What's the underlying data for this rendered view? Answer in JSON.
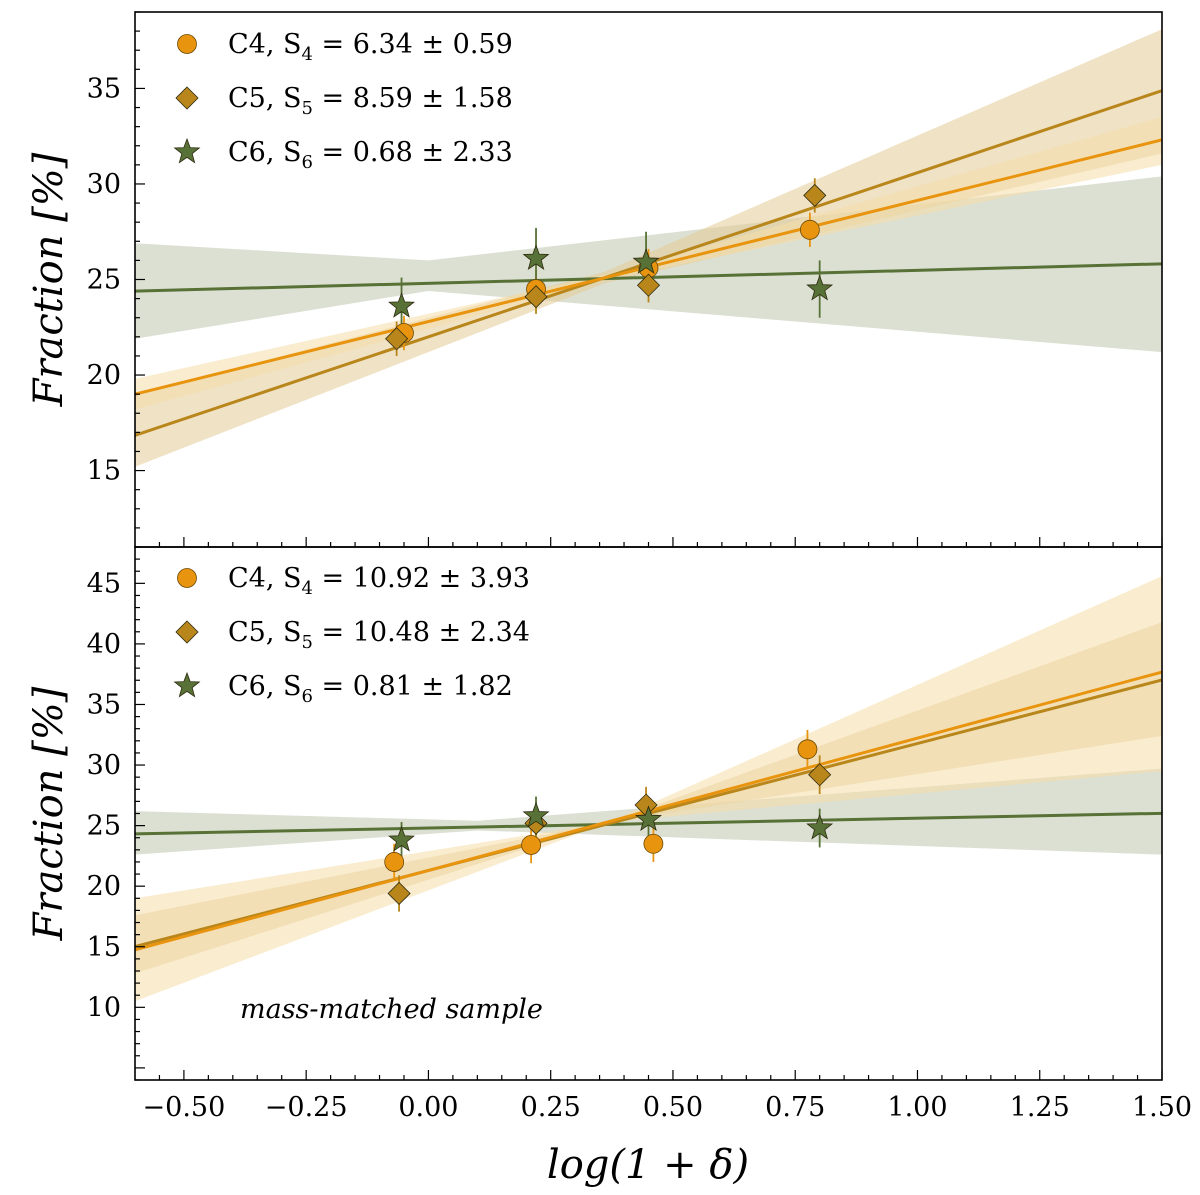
{
  "figure": {
    "x_axis_label": "log(1 + δ)"
  },
  "colors": {
    "C4": "#E8940E",
    "C5": "#B8861A",
    "C6": "#587136",
    "C4_band": "#F6DCA8",
    "C5_band": "#E3CB95",
    "C6_band": "#C5CCB6"
  },
  "chart_data": [
    {
      "type": "scatter",
      "panel": "top",
      "xlabel": "log(1 + δ)",
      "ylabel": "Fraction [%]",
      "xlim": [
        -0.6,
        1.5
      ],
      "ylim": [
        11,
        39
      ],
      "yticks": [
        15,
        20,
        25,
        30,
        35
      ],
      "xticks": [
        -0.5,
        -0.25,
        0.0,
        0.25,
        0.5,
        0.75,
        1.0,
        1.25,
        1.5
      ],
      "xtick_labels": [
        "−0.50",
        "−0.25",
        "0.00",
        "0.25",
        "0.50",
        "0.75",
        "1.00",
        "1.25",
        "1.50"
      ],
      "annotation": "",
      "series": [
        {
          "name": "C4",
          "marker": "circle",
          "legend": {
            "prefix": "C4,",
            "sym": "S",
            "sub": "4",
            "value": "= 6.34 ± 0.59"
          },
          "points": [
            {
              "x": -0.05,
              "y": 22.2,
              "err": 0.9
            },
            {
              "x": 0.22,
              "y": 24.5,
              "err": 1.0
            },
            {
              "x": 0.45,
              "y": 25.6,
              "err": 1.0
            },
            {
              "x": 0.78,
              "y": 27.6,
              "err": 0.9
            }
          ],
          "fit": {
            "slope": 6.34,
            "intercept": 22.8
          },
          "band": {
            "x": [
              -0.6,
              0.36,
              1.5
            ],
            "lo": [
              18.2,
              24.95,
              31.0
            ],
            "hi": [
              19.8,
              25.25,
              33.5
            ]
          }
        },
        {
          "name": "C5",
          "marker": "diamond",
          "legend": {
            "prefix": "C5,",
            "sym": "S",
            "sub": "5",
            "value": "= 8.59 ± 1.58"
          },
          "points": [
            {
              "x": -0.065,
              "y": 21.9,
              "err": 0.9
            },
            {
              "x": 0.22,
              "y": 24.1,
              "err": 0.9
            },
            {
              "x": 0.45,
              "y": 24.7,
              "err": 0.9
            },
            {
              "x": 0.79,
              "y": 29.4,
              "err": 0.9
            }
          ],
          "fit": {
            "slope": 8.59,
            "intercept": 22.0
          },
          "band": {
            "x": [
              -0.6,
              0.36,
              1.5
            ],
            "lo": [
              15.2,
              24.8,
              31.6
            ],
            "hi": [
              19.0,
              25.4,
              38.1
            ]
          }
        },
        {
          "name": "C6",
          "marker": "star",
          "legend": {
            "prefix": "C6,",
            "sym": "S",
            "sub": "6",
            "value": "= 0.68 ± 2.33"
          },
          "points": [
            {
              "x": -0.055,
              "y": 23.6,
              "err": 1.5
            },
            {
              "x": 0.22,
              "y": 26.1,
              "err": 1.6
            },
            {
              "x": 0.445,
              "y": 25.9,
              "err": 1.6
            },
            {
              "x": 0.8,
              "y": 24.5,
              "err": 1.5
            }
          ],
          "fit": {
            "slope": 0.68,
            "intercept": 24.8
          },
          "band": {
            "x": [
              -0.6,
              0.0,
              1.5
            ],
            "lo": [
              21.9,
              24.4,
              21.2
            ],
            "hi": [
              26.9,
              26.0,
              30.4
            ]
          }
        }
      ]
    },
    {
      "type": "scatter",
      "panel": "bottom",
      "xlabel": "log(1 + δ)",
      "ylabel": "Fraction [%]",
      "xlim": [
        -0.6,
        1.5
      ],
      "ylim": [
        4,
        48
      ],
      "yticks": [
        10,
        15,
        20,
        25,
        30,
        35,
        40,
        45
      ],
      "xticks": [
        -0.5,
        -0.25,
        0.0,
        0.25,
        0.5,
        0.75,
        1.0,
        1.25,
        1.5
      ],
      "xtick_labels": [
        "−0.50",
        "−0.25",
        "0.00",
        "0.25",
        "0.50",
        "0.75",
        "1.00",
        "1.25",
        "1.50"
      ],
      "annotation": "mass-matched sample",
      "series": [
        {
          "name": "C4",
          "marker": "circle",
          "legend": {
            "prefix": "C4,",
            "sym": "S",
            "sub": "4",
            "value": "= 10.92 ± 3.93"
          },
          "points": [
            {
              "x": -0.07,
              "y": 22.0,
              "err": 1.5
            },
            {
              "x": 0.21,
              "y": 23.4,
              "err": 1.5
            },
            {
              "x": 0.46,
              "y": 23.5,
              "err": 1.5
            },
            {
              "x": 0.775,
              "y": 31.3,
              "err": 1.6
            }
          ],
          "fit": {
            "slope": 10.92,
            "intercept": 21.3
          },
          "band": {
            "x": [
              -0.6,
              0.37,
              1.5
            ],
            "lo": [
              10.5,
              25.3,
              29.5
            ],
            "hi": [
              19.0,
              25.3,
              45.6
            ]
          }
        },
        {
          "name": "C5",
          "marker": "diamond",
          "legend": {
            "prefix": "C5,",
            "sym": "S",
            "sub": "5",
            "value": "= 10.48 ± 2.34"
          },
          "points": [
            {
              "x": -0.06,
              "y": 19.4,
              "err": 1.5
            },
            {
              "x": 0.22,
              "y": 25.2,
              "err": 1.5
            },
            {
              "x": 0.445,
              "y": 26.7,
              "err": 1.5
            },
            {
              "x": 0.8,
              "y": 29.2,
              "err": 1.6
            }
          ],
          "fit": {
            "slope": 10.48,
            "intercept": 21.3
          },
          "band": {
            "x": [
              -0.6,
              0.37,
              1.5
            ],
            "lo": [
              12.8,
              25.3,
              32.4
            ],
            "hi": [
              17.6,
              25.3,
              41.8
            ]
          }
        },
        {
          "name": "C6",
          "marker": "star",
          "legend": {
            "prefix": "C6,",
            "sym": "S",
            "sub": "6",
            "value": "= 0.81 ± 1.82"
          },
          "points": [
            {
              "x": -0.055,
              "y": 23.8,
              "err": 1.5
            },
            {
              "x": 0.22,
              "y": 25.8,
              "err": 1.6
            },
            {
              "x": 0.45,
              "y": 25.5,
              "err": 1.6
            },
            {
              "x": 0.8,
              "y": 24.8,
              "err": 1.6
            }
          ],
          "fit": {
            "slope": 0.81,
            "intercept": 24.8
          },
          "band": {
            "x": [
              -0.6,
              0.1,
              1.5
            ],
            "lo": [
              22.6,
              24.6,
              22.6
            ],
            "hi": [
              26.2,
              25.4,
              29.7
            ]
          }
        }
      ]
    }
  ]
}
